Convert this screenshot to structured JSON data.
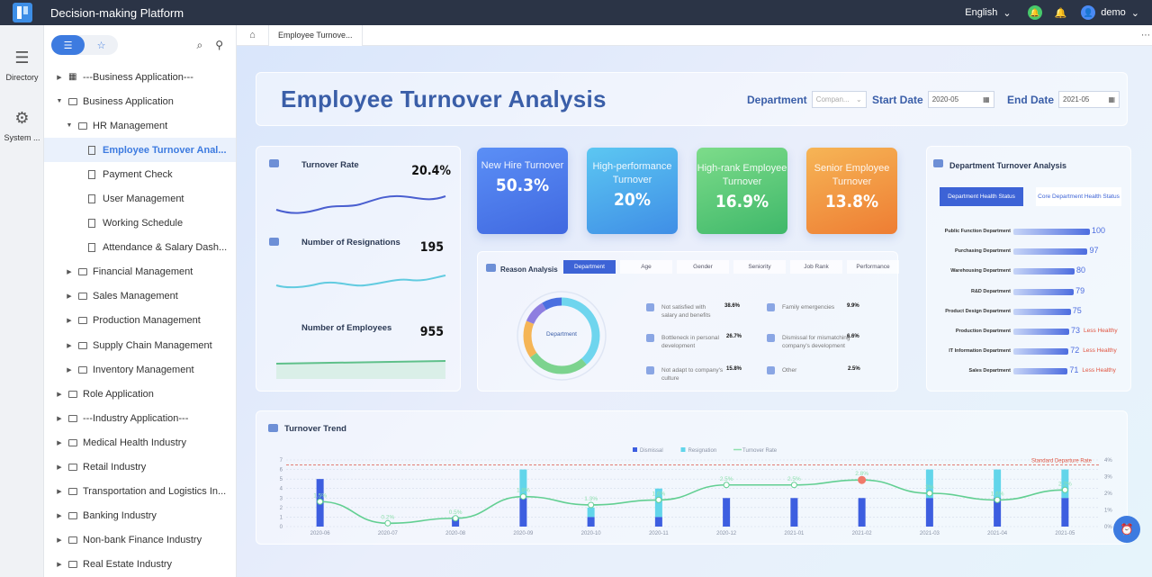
{
  "app": {
    "title": "Decision-making Platform",
    "language": "English",
    "user": "demo"
  },
  "leftnav": {
    "items": [
      {
        "label": "Directory",
        "icon": "list-icon"
      },
      {
        "label": "System ...",
        "icon": "gear-icon"
      }
    ]
  },
  "tree": {
    "items": [
      {
        "label": "---Business Application---",
        "level": 0,
        "type": "group",
        "expanded": false
      },
      {
        "label": "Business Application",
        "level": 0,
        "type": "folder",
        "expanded": true
      },
      {
        "label": "HR Management",
        "level": 1,
        "type": "folder",
        "expanded": true
      },
      {
        "label": "Employee Turnover Anal...",
        "level": 2,
        "type": "doc",
        "selected": true
      },
      {
        "label": "Payment Check",
        "level": 2,
        "type": "doc"
      },
      {
        "label": "User Management",
        "level": 2,
        "type": "doc"
      },
      {
        "label": "Working Schedule",
        "level": 2,
        "type": "doc"
      },
      {
        "label": "Attendance & Salary Dash...",
        "level": 2,
        "type": "doc"
      },
      {
        "label": "Financial Management",
        "level": 1,
        "type": "folder"
      },
      {
        "label": "Sales Management",
        "level": 1,
        "type": "folder"
      },
      {
        "label": "Production Management",
        "level": 1,
        "type": "folder"
      },
      {
        "label": "Supply Chain Management",
        "level": 1,
        "type": "folder"
      },
      {
        "label": "Inventory Management",
        "level": 1,
        "type": "folder"
      },
      {
        "label": "Role Application",
        "level": 0,
        "type": "folder"
      },
      {
        "label": "---Industry Application---",
        "level": 0,
        "type": "folder"
      },
      {
        "label": "Medical Health Industry",
        "level": 0,
        "type": "folder"
      },
      {
        "label": "Retail Industry",
        "level": 0,
        "type": "folder"
      },
      {
        "label": "Transportation and Logistics In...",
        "level": 0,
        "type": "folder"
      },
      {
        "label": "Banking Industry",
        "level": 0,
        "type": "folder"
      },
      {
        "label": "Non-bank Finance Industry",
        "level": 0,
        "type": "folder"
      },
      {
        "label": "Real Estate Industry",
        "level": 0,
        "type": "folder"
      }
    ]
  },
  "tabs": {
    "active": "Employee Turnove..."
  },
  "dashboard": {
    "title": "Employee Turnover Analysis",
    "department_label": "Department",
    "department_value": "Compan...",
    "start_label": "Start Date",
    "start_value": "2020-05",
    "end_label": "End Date",
    "end_value": "2021-05",
    "metrics": [
      {
        "title": "Turnover Rate",
        "value": "20.4%"
      },
      {
        "title": "Number of Resignations",
        "value": "195"
      },
      {
        "title": "Number of Employees",
        "value": "955"
      }
    ],
    "kpis": [
      {
        "title": "New Hire Turnover",
        "value": "50.3%",
        "color1": "#5b8ff6",
        "color2": "#4068e0"
      },
      {
        "title": "High-performance Turnover",
        "value": "20%",
        "color1": "#5cc7f2",
        "color2": "#3f8ee6"
      },
      {
        "title": "High-rank Employee Turnover",
        "value": "16.9%",
        "color1": "#7ddc8a",
        "color2": "#3fb86a"
      },
      {
        "title": "Senior Employee Turnover",
        "value": "13.8%",
        "color1": "#f6b556",
        "color2": "#ee7d33"
      }
    ],
    "reason": {
      "title": "Reason Analysis",
      "tabs": [
        "Department",
        "Age",
        "Gender",
        "Seniority",
        "Job Rank",
        "Performance"
      ],
      "donut_label": "Department",
      "items": [
        {
          "label": "Not satisfied with salary and benefits",
          "pct": "38.6%"
        },
        {
          "label": "Bottleneck in personal development",
          "pct": "26.7%"
        },
        {
          "label": "Not adapt to company's culture",
          "pct": "15.8%"
        },
        {
          "label": "Family emergencies",
          "pct": "9.9%"
        },
        {
          "label": "Dismissal for mismatching company's development",
          "pct": "6.6%"
        },
        {
          "label": "Other",
          "pct": "2.5%"
        }
      ]
    },
    "dept": {
      "title": "Department Turnover Analysis",
      "btn1": "Department Health Status",
      "btn2": "Core Department Health Status",
      "rows": [
        {
          "name": "Public Function Department",
          "value": 100,
          "flag": ""
        },
        {
          "name": "Purchasing Department",
          "value": 97,
          "flag": ""
        },
        {
          "name": "Warehousing Department",
          "value": 80,
          "flag": ""
        },
        {
          "name": "R&D Department",
          "value": 79,
          "flag": ""
        },
        {
          "name": "Product Design Department",
          "value": 75,
          "flag": ""
        },
        {
          "name": "Production Department",
          "value": 73,
          "flag": "Less Healthy"
        },
        {
          "name": "IT Information Department",
          "value": 72,
          "flag": "Less Healthy"
        },
        {
          "name": "Sales Department",
          "value": 71,
          "flag": "Less Healthy"
        }
      ]
    }
  },
  "chart_data": {
    "type": "bar",
    "title": "Turnover Trend",
    "categories": [
      "2020-06",
      "2020-07",
      "2020-08",
      "2020-09",
      "2020-10",
      "2020-11",
      "2020-12",
      "2021-01",
      "2021-02",
      "2021-03",
      "2021-04",
      "2021-05"
    ],
    "series": [
      {
        "name": "Dismissal",
        "values": [
          5,
          0,
          1,
          3,
          1,
          1,
          3,
          3,
          3,
          3,
          3,
          3
        ]
      },
      {
        "name": "Resignation",
        "values": [
          0,
          0,
          0,
          3,
          1,
          3,
          0,
          0,
          0,
          3,
          3,
          3
        ]
      },
      {
        "name": "Turnover Rate",
        "type": "line",
        "labels": [
          "1.5%",
          "0.2%",
          "0.5%",
          "1.8%",
          "1.3%",
          "1.6%",
          "2.5%",
          "2.5%",
          "2.8%",
          "2%",
          "1.6%",
          "2.2%"
        ],
        "values": [
          1.5,
          0.2,
          0.5,
          1.8,
          1.3,
          1.6,
          2.5,
          2.5,
          2.8,
          2.0,
          1.6,
          2.2
        ]
      }
    ],
    "ylim": [
      0,
      7
    ],
    "y2lim": [
      0,
      4
    ],
    "reference_line": {
      "label": "Standard Departure Rate",
      "value": 3.7
    }
  }
}
